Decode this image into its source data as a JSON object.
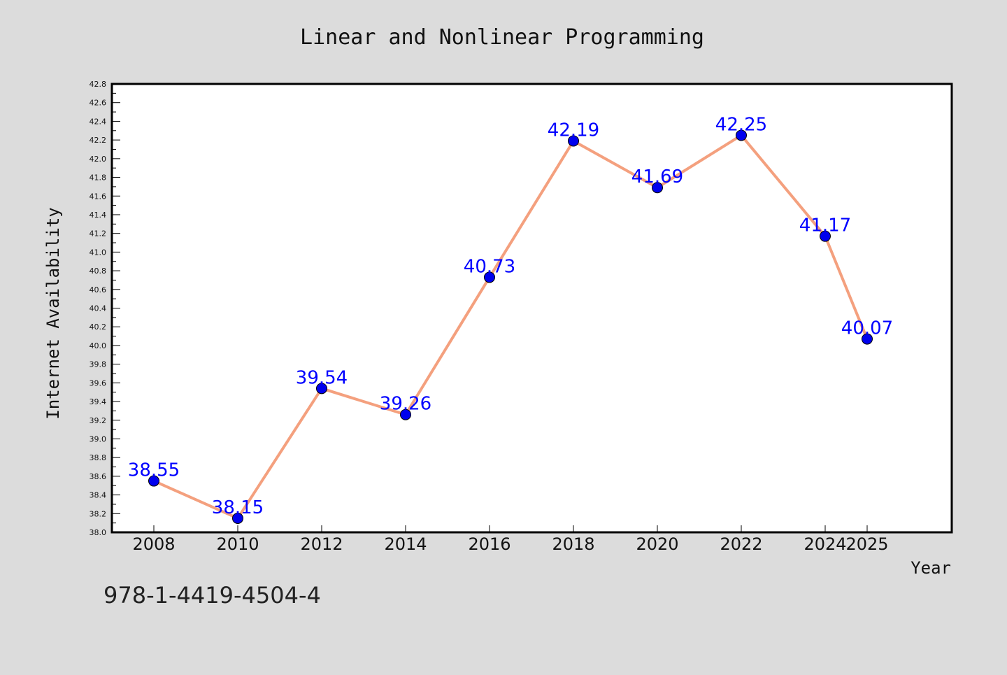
{
  "chart_data": {
    "type": "line",
    "title": "Linear and Nonlinear Programming",
    "xlabel": "Year",
    "ylabel": "Internet Availability",
    "categories": [
      "2008",
      "2010",
      "2012",
      "2014",
      "2016",
      "2018",
      "2020",
      "2022",
      "2024",
      "2025"
    ],
    "series": [
      {
        "values": [
          38.55,
          38.15,
          39.54,
          39.26,
          40.73,
          42.19,
          41.69,
          42.25,
          41.17,
          40.07
        ]
      }
    ],
    "data_labels": [
      "38.55",
      "38.15",
      "39.54",
      "39.26",
      "40.73",
      "42.19",
      "41.69",
      "42.25",
      "41.17",
      "40.07"
    ],
    "ylim": [
      38.0,
      42.8
    ],
    "y_ticks": [
      "38.0",
      "38.2",
      "38.4",
      "38.6",
      "38.8",
      "39.0",
      "39.2",
      "39.4",
      "39.6",
      "39.8",
      "40.0",
      "40.2",
      "40.4",
      "40.6",
      "40.8",
      "41.0",
      "41.2",
      "41.4",
      "41.6",
      "41.8",
      "42.0",
      "42.2",
      "42.4",
      "42.6",
      "42.8"
    ],
    "grid": false,
    "legend": "none",
    "colors": {
      "line": "#f4a07e",
      "marker": "#0000ee",
      "label": "#0000ff",
      "background": "#dcdcdc",
      "plot_background": "#ffffff"
    }
  },
  "footer": {
    "isbn": "978-1-4419-4504-4"
  }
}
